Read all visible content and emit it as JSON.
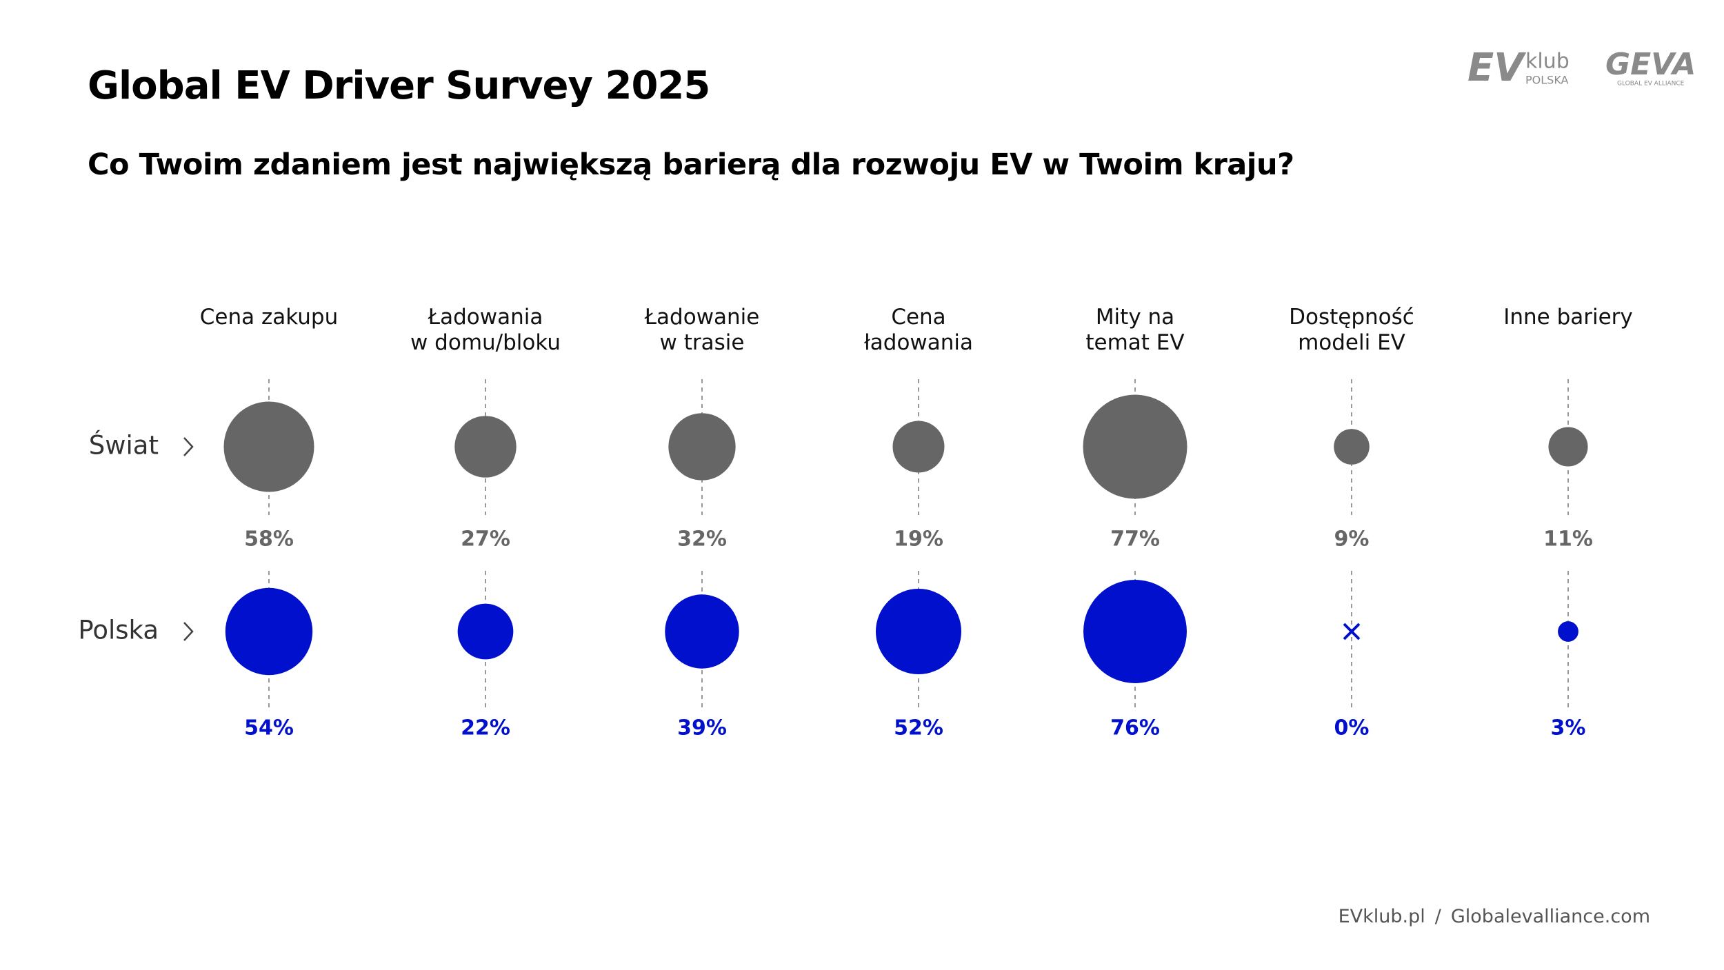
{
  "chart_data": {
    "type": "bubble",
    "title": "Global EV Driver Survey 2025",
    "subtitle": "Co Twoim zdaniem jest największą barierą dla rozwoju EV w Twoim kraju?",
    "categories": [
      "Cena zakupu",
      "Ładowania\nw domu/bloku",
      "Ładowanie\nw trasie",
      "Cena\nładowania",
      "Mity na\ntemat EV",
      "Dostępność\nmodeli EV",
      "Inne bariery"
    ],
    "series": [
      {
        "name": "Świat",
        "color": "#666666",
        "values": [
          58,
          27,
          32,
          19,
          77,
          9,
          11
        ],
        "value_labels": [
          "58%",
          "27%",
          "32%",
          "19%",
          "77%",
          "9%",
          "11%"
        ]
      },
      {
        "name": "Polska",
        "color": "#0010cc",
        "values": [
          54,
          22,
          39,
          52,
          76,
          0,
          3
        ],
        "value_labels": [
          "54%",
          "22%",
          "39%",
          "52%",
          "76%",
          "0%",
          "3%"
        ]
      }
    ]
  },
  "logos": {
    "evklub_mark": "EV",
    "evklub_word": "klub",
    "evklub_sub": "POLSKA",
    "geva_mark": "GEVA",
    "geva_sub": "GLOBAL EV ALLIANCE"
  },
  "footer": {
    "left": "EVklub.pl",
    "separator": "/",
    "right": "Globalevalliance.com"
  }
}
